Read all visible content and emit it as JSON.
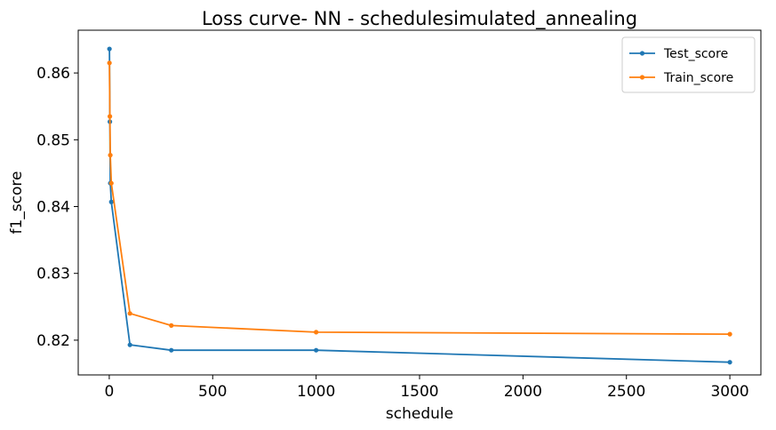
{
  "chart_data": {
    "type": "line",
    "title": "Loss curve- NN - schedulesimulated_annealing",
    "xlabel": "schedule",
    "ylabel": "f1_score",
    "xlim": [
      -150,
      3150
    ],
    "ylim": [
      0.8148,
      0.8664
    ],
    "xticks": [
      0,
      500,
      1000,
      1500,
      2000,
      2500,
      3000
    ],
    "xtick_labels": [
      "0",
      "500",
      "1000",
      "1500",
      "2000",
      "2500",
      "3000"
    ],
    "yticks": [
      0.82,
      0.83,
      0.84,
      0.85,
      0.86
    ],
    "ytick_labels": [
      "0.82",
      "0.83",
      "0.84",
      "0.85",
      "0.86"
    ],
    "grid": false,
    "legend_position": "top-right",
    "x": [
      1,
      3,
      5,
      10,
      100,
      300,
      1000,
      3000
    ],
    "series": [
      {
        "name": "Test_score",
        "color": "#1f77b4",
        "values": [
          0.8636,
          0.8527,
          0.8435,
          0.8407,
          0.8193,
          0.8185,
          0.8185,
          0.8167
        ]
      },
      {
        "name": "Train_score",
        "color": "#ff7f0e",
        "values": [
          0.8615,
          0.8535,
          0.8477,
          0.8435,
          0.824,
          0.8222,
          0.8212,
          0.8209
        ]
      }
    ]
  }
}
